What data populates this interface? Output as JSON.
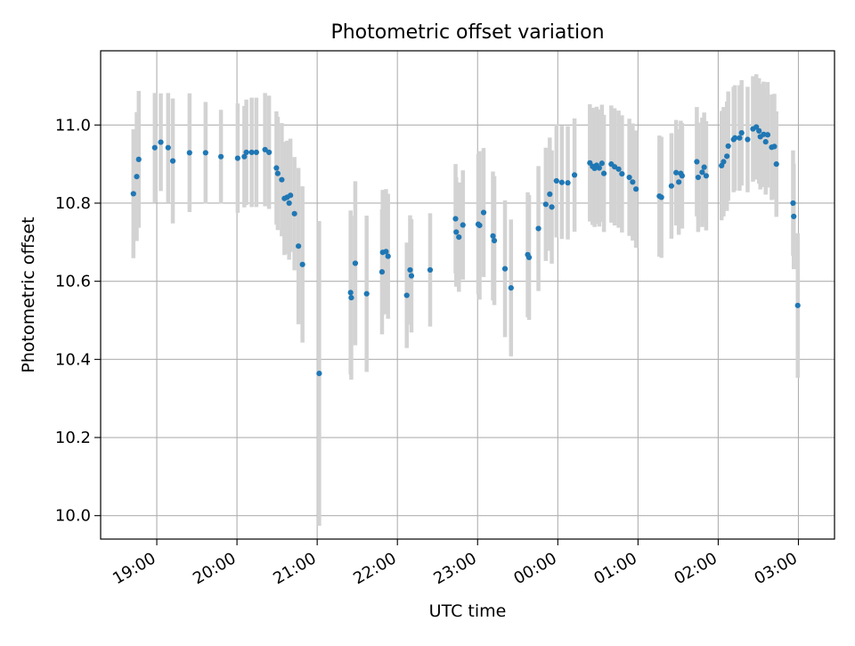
{
  "chart_data": {
    "type": "scatter",
    "title": "Photometric offset variation",
    "xlabel": "UTC time",
    "ylabel": "Photometric offset",
    "x_unit": "minutes since 19:00 UTC (x=0 at 19:00, x=480 at 03:00 next day)",
    "xlim": [
      -42,
      507
    ],
    "ylim": [
      9.94,
      11.19
    ],
    "x_ticks": [
      0,
      60,
      120,
      180,
      240,
      300,
      360,
      420,
      480
    ],
    "x_tick_labels": [
      "19:00",
      "20:00",
      "21:00",
      "22:00",
      "23:00",
      "00:00",
      "01:00",
      "02:00",
      "03:00"
    ],
    "y_ticks": [
      10.0,
      10.2,
      10.4,
      10.6,
      10.8,
      11.0
    ],
    "y_tick_labels": [
      "10.0",
      "10.2",
      "10.4",
      "10.6",
      "10.8",
      "11.0"
    ],
    "grid": true,
    "colors": {
      "point": "#1f77b4",
      "errorbar": "#d3d3d3",
      "grid": "#b0b0b0"
    },
    "series": [
      {
        "values": [
          {
            "x": -17.5,
            "y": 10.824,
            "yerr": 0.165
          },
          {
            "x": -15.0,
            "y": 10.868,
            "yerr": 0.165
          },
          {
            "x": -13.5,
            "y": 10.912,
            "yerr": 0.175
          },
          {
            "x": -1.5,
            "y": 10.942,
            "yerr": 0.14
          },
          {
            "x": 3.0,
            "y": 10.956,
            "yerr": 0.125
          },
          {
            "x": 8.5,
            "y": 10.942,
            "yerr": 0.14
          },
          {
            "x": 12.0,
            "y": 10.908,
            "yerr": 0.16
          },
          {
            "x": 24.5,
            "y": 10.929,
            "yerr": 0.152
          },
          {
            "x": 36.5,
            "y": 10.929,
            "yerr": 0.13
          },
          {
            "x": 48.0,
            "y": 10.919,
            "yerr": 0.12
          },
          {
            "x": 60.5,
            "y": 10.915,
            "yerr": 0.14
          },
          {
            "x": 65.5,
            "y": 10.919,
            "yerr": 0.13
          },
          {
            "x": 67.0,
            "y": 10.93,
            "yerr": 0.135
          },
          {
            "x": 71.0,
            "y": 10.93,
            "yerr": 0.14
          },
          {
            "x": 74.5,
            "y": 10.93,
            "yerr": 0.14
          },
          {
            "x": 81.0,
            "y": 10.937,
            "yerr": 0.145
          },
          {
            "x": 84.0,
            "y": 10.93,
            "yerr": 0.145
          },
          {
            "x": 89.5,
            "y": 10.89,
            "yerr": 0.145
          },
          {
            "x": 90.5,
            "y": 10.876,
            "yerr": 0.145
          },
          {
            "x": 93.5,
            "y": 10.86,
            "yerr": 0.145
          },
          {
            "x": 95.5,
            "y": 10.812,
            "yerr": 0.145
          },
          {
            "x": 97.5,
            "y": 10.815,
            "yerr": 0.145
          },
          {
            "x": 100.0,
            "y": 10.82,
            "yerr": 0.145
          },
          {
            "x": 99.0,
            "y": 10.8,
            "yerr": 0.145
          },
          {
            "x": 103.0,
            "y": 10.773,
            "yerr": 0.145
          },
          {
            "x": 106.0,
            "y": 10.69,
            "yerr": 0.2
          },
          {
            "x": 109.0,
            "y": 10.643,
            "yerr": 0.2
          },
          {
            "x": 121.5,
            "y": 10.364,
            "yerr": 0.39
          },
          {
            "x": 145.0,
            "y": 10.571,
            "yerr": 0.21
          },
          {
            "x": 145.5,
            "y": 10.558,
            "yerr": 0.21
          },
          {
            "x": 148.5,
            "y": 10.646,
            "yerr": 0.21
          },
          {
            "x": 157.0,
            "y": 10.568,
            "yerr": 0.2
          },
          {
            "x": 168.5,
            "y": 10.624,
            "yerr": 0.16
          },
          {
            "x": 169.0,
            "y": 10.674,
            "yerr": 0.16
          },
          {
            "x": 171.5,
            "y": 10.676,
            "yerr": 0.16
          },
          {
            "x": 173.0,
            "y": 10.664,
            "yerr": 0.16
          },
          {
            "x": 187.0,
            "y": 10.564,
            "yerr": 0.135
          },
          {
            "x": 189.5,
            "y": 10.629,
            "yerr": 0.14
          },
          {
            "x": 190.5,
            "y": 10.614,
            "yerr": 0.145
          },
          {
            "x": 204.5,
            "y": 10.629,
            "yerr": 0.145
          },
          {
            "x": 223.5,
            "y": 10.76,
            "yerr": 0.14
          },
          {
            "x": 224.0,
            "y": 10.726,
            "yerr": 0.14
          },
          {
            "x": 226.0,
            "y": 10.713,
            "yerr": 0.14
          },
          {
            "x": 229.0,
            "y": 10.744,
            "yerr": 0.14
          },
          {
            "x": 240.5,
            "y": 10.746,
            "yerr": 0.18
          },
          {
            "x": 241.5,
            "y": 10.743,
            "yerr": 0.19
          },
          {
            "x": 244.5,
            "y": 10.776,
            "yerr": 0.165
          },
          {
            "x": 251.5,
            "y": 10.716,
            "yerr": 0.165
          },
          {
            "x": 252.5,
            "y": 10.704,
            "yerr": 0.165
          },
          {
            "x": 260.5,
            "y": 10.632,
            "yerr": 0.175
          },
          {
            "x": 265.0,
            "y": 10.583,
            "yerr": 0.175
          },
          {
            "x": 277.5,
            "y": 10.668,
            "yerr": 0.16
          },
          {
            "x": 278.5,
            "y": 10.661,
            "yerr": 0.16
          },
          {
            "x": 285.5,
            "y": 10.735,
            "yerr": 0.16
          },
          {
            "x": 291.0,
            "y": 10.797,
            "yerr": 0.145
          },
          {
            "x": 294.0,
            "y": 10.823,
            "yerr": 0.145
          },
          {
            "x": 295.5,
            "y": 10.79,
            "yerr": 0.145
          },
          {
            "x": 299.0,
            "y": 10.857,
            "yerr": 0.145
          },
          {
            "x": 303.0,
            "y": 10.853,
            "yerr": 0.145
          },
          {
            "x": 307.5,
            "y": 10.852,
            "yerr": 0.145
          },
          {
            "x": 312.5,
            "y": 10.872,
            "yerr": 0.145
          },
          {
            "x": 324.0,
            "y": 10.903,
            "yerr": 0.15
          },
          {
            "x": 326.0,
            "y": 10.894,
            "yerr": 0.15
          },
          {
            "x": 327.5,
            "y": 10.889,
            "yerr": 0.15
          },
          {
            "x": 329.0,
            "y": 10.897,
            "yerr": 0.15
          },
          {
            "x": 331.0,
            "y": 10.89,
            "yerr": 0.15
          },
          {
            "x": 333.0,
            "y": 10.902,
            "yerr": 0.15
          },
          {
            "x": 334.5,
            "y": 10.876,
            "yerr": 0.15
          },
          {
            "x": 340.0,
            "y": 10.9,
            "yerr": 0.15
          },
          {
            "x": 342.5,
            "y": 10.893,
            "yerr": 0.15
          },
          {
            "x": 345.5,
            "y": 10.887,
            "yerr": 0.15
          },
          {
            "x": 348.0,
            "y": 10.875,
            "yerr": 0.15
          },
          {
            "x": 353.5,
            "y": 10.866,
            "yerr": 0.15
          },
          {
            "x": 356.0,
            "y": 10.854,
            "yerr": 0.15
          },
          {
            "x": 358.5,
            "y": 10.836,
            "yerr": 0.15
          },
          {
            "x": 376.0,
            "y": 10.818,
            "yerr": 0.155
          },
          {
            "x": 377.5,
            "y": 10.815,
            "yerr": 0.155
          },
          {
            "x": 385.0,
            "y": 10.844,
            "yerr": 0.135
          },
          {
            "x": 388.5,
            "y": 10.878,
            "yerr": 0.135
          },
          {
            "x": 390.5,
            "y": 10.854,
            "yerr": 0.135
          },
          {
            "x": 392.0,
            "y": 10.876,
            "yerr": 0.135
          },
          {
            "x": 393.0,
            "y": 10.87,
            "yerr": 0.135
          },
          {
            "x": 404.0,
            "y": 10.906,
            "yerr": 0.14
          },
          {
            "x": 405.0,
            "y": 10.866,
            "yerr": 0.14
          },
          {
            "x": 408.0,
            "y": 10.879,
            "yerr": 0.14
          },
          {
            "x": 409.5,
            "y": 10.892,
            "yerr": 0.14
          },
          {
            "x": 411.0,
            "y": 10.87,
            "yerr": 0.14
          },
          {
            "x": 422.5,
            "y": 10.896,
            "yerr": 0.14
          },
          {
            "x": 424.0,
            "y": 10.906,
            "yerr": 0.14
          },
          {
            "x": 426.5,
            "y": 10.92,
            "yerr": 0.14
          },
          {
            "x": 427.5,
            "y": 10.946,
            "yerr": 0.14
          },
          {
            "x": 431.5,
            "y": 10.963,
            "yerr": 0.135
          },
          {
            "x": 432.5,
            "y": 10.967,
            "yerr": 0.135
          },
          {
            "x": 436.0,
            "y": 10.967,
            "yerr": 0.135
          },
          {
            "x": 437.5,
            "y": 10.98,
            "yerr": 0.135
          },
          {
            "x": 442.0,
            "y": 10.963,
            "yerr": 0.135
          },
          {
            "x": 446.0,
            "y": 10.99,
            "yerr": 0.135
          },
          {
            "x": 448.5,
            "y": 10.995,
            "yerr": 0.135
          },
          {
            "x": 450.5,
            "y": 10.985,
            "yerr": 0.135
          },
          {
            "x": 451.5,
            "y": 10.97,
            "yerr": 0.135
          },
          {
            "x": 454.0,
            "y": 10.976,
            "yerr": 0.135
          },
          {
            "x": 455.5,
            "y": 10.957,
            "yerr": 0.135
          },
          {
            "x": 457.0,
            "y": 10.975,
            "yerr": 0.135
          },
          {
            "x": 460.0,
            "y": 10.943,
            "yerr": 0.135
          },
          {
            "x": 462.0,
            "y": 10.945,
            "yerr": 0.135
          },
          {
            "x": 463.5,
            "y": 10.9,
            "yerr": 0.135
          },
          {
            "x": 476.0,
            "y": 10.8,
            "yerr": 0.135
          },
          {
            "x": 476.5,
            "y": 10.766,
            "yerr": 0.135
          },
          {
            "x": 479.5,
            "y": 10.538,
            "yerr": 0.185
          }
        ]
      }
    ]
  }
}
